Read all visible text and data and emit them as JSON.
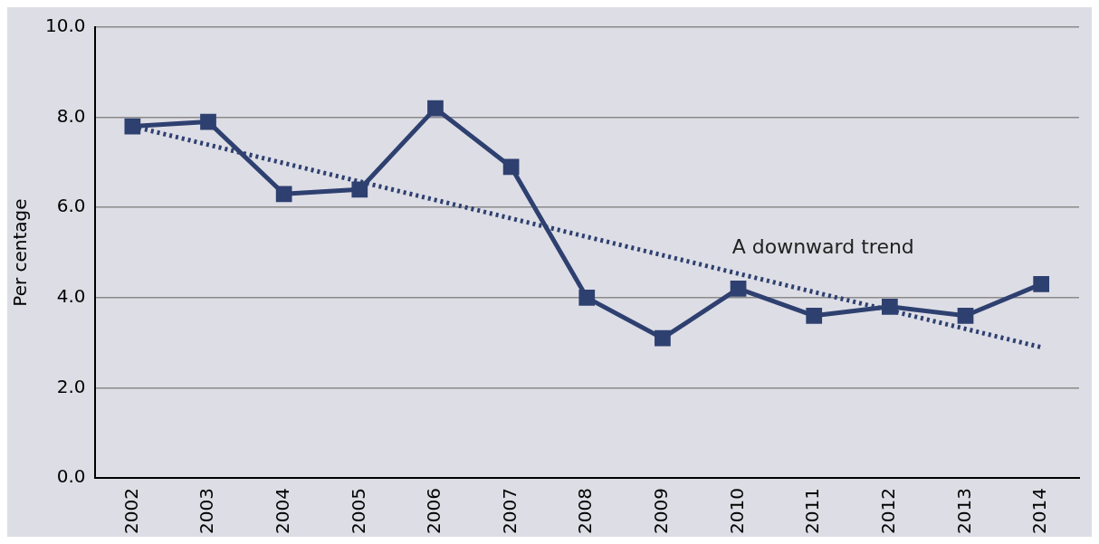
{
  "chart_data": {
    "type": "line",
    "ylabel": "Per centage",
    "x": [
      2002,
      2003,
      2004,
      2005,
      2006,
      2007,
      2008,
      2009,
      2010,
      2011,
      2012,
      2013,
      2014
    ],
    "marker": "square",
    "series": [
      {
        "color": "#2e4070",
        "values": [
          7.8,
          7.9,
          6.3,
          6.4,
          8.2,
          6.9,
          4.0,
          3.1,
          4.2,
          3.6,
          3.8,
          3.6,
          4.3
        ],
        "line_style": "solid"
      },
      {
        "type": "line",
        "color": "#2e4070",
        "x": [
          2002,
          2014
        ],
        "values": [
          7.8,
          2.9
        ],
        "marker": "none",
        "line_style": "dotted"
      }
    ],
    "xlim": [
      2001.5,
      2014.5
    ],
    "xticks": [
      2002,
      2003,
      2004,
      2005,
      2006,
      2007,
      2008,
      2009,
      2010,
      2011,
      2012,
      2013,
      2014
    ],
    "ylim": [
      0,
      10
    ],
    "yticks": [
      {
        "value": 0,
        "label": "0.0"
      },
      {
        "value": 2,
        "label": "2.0"
      },
      {
        "value": 4,
        "label": "4.0"
      },
      {
        "value": 6,
        "label": "6.0"
      },
      {
        "value": 8,
        "label": "8.0"
      },
      {
        "value": 10,
        "label": "10.0"
      }
    ],
    "grid": "y",
    "legend": false,
    "annotations": [
      "A downward trend"
    ]
  }
}
